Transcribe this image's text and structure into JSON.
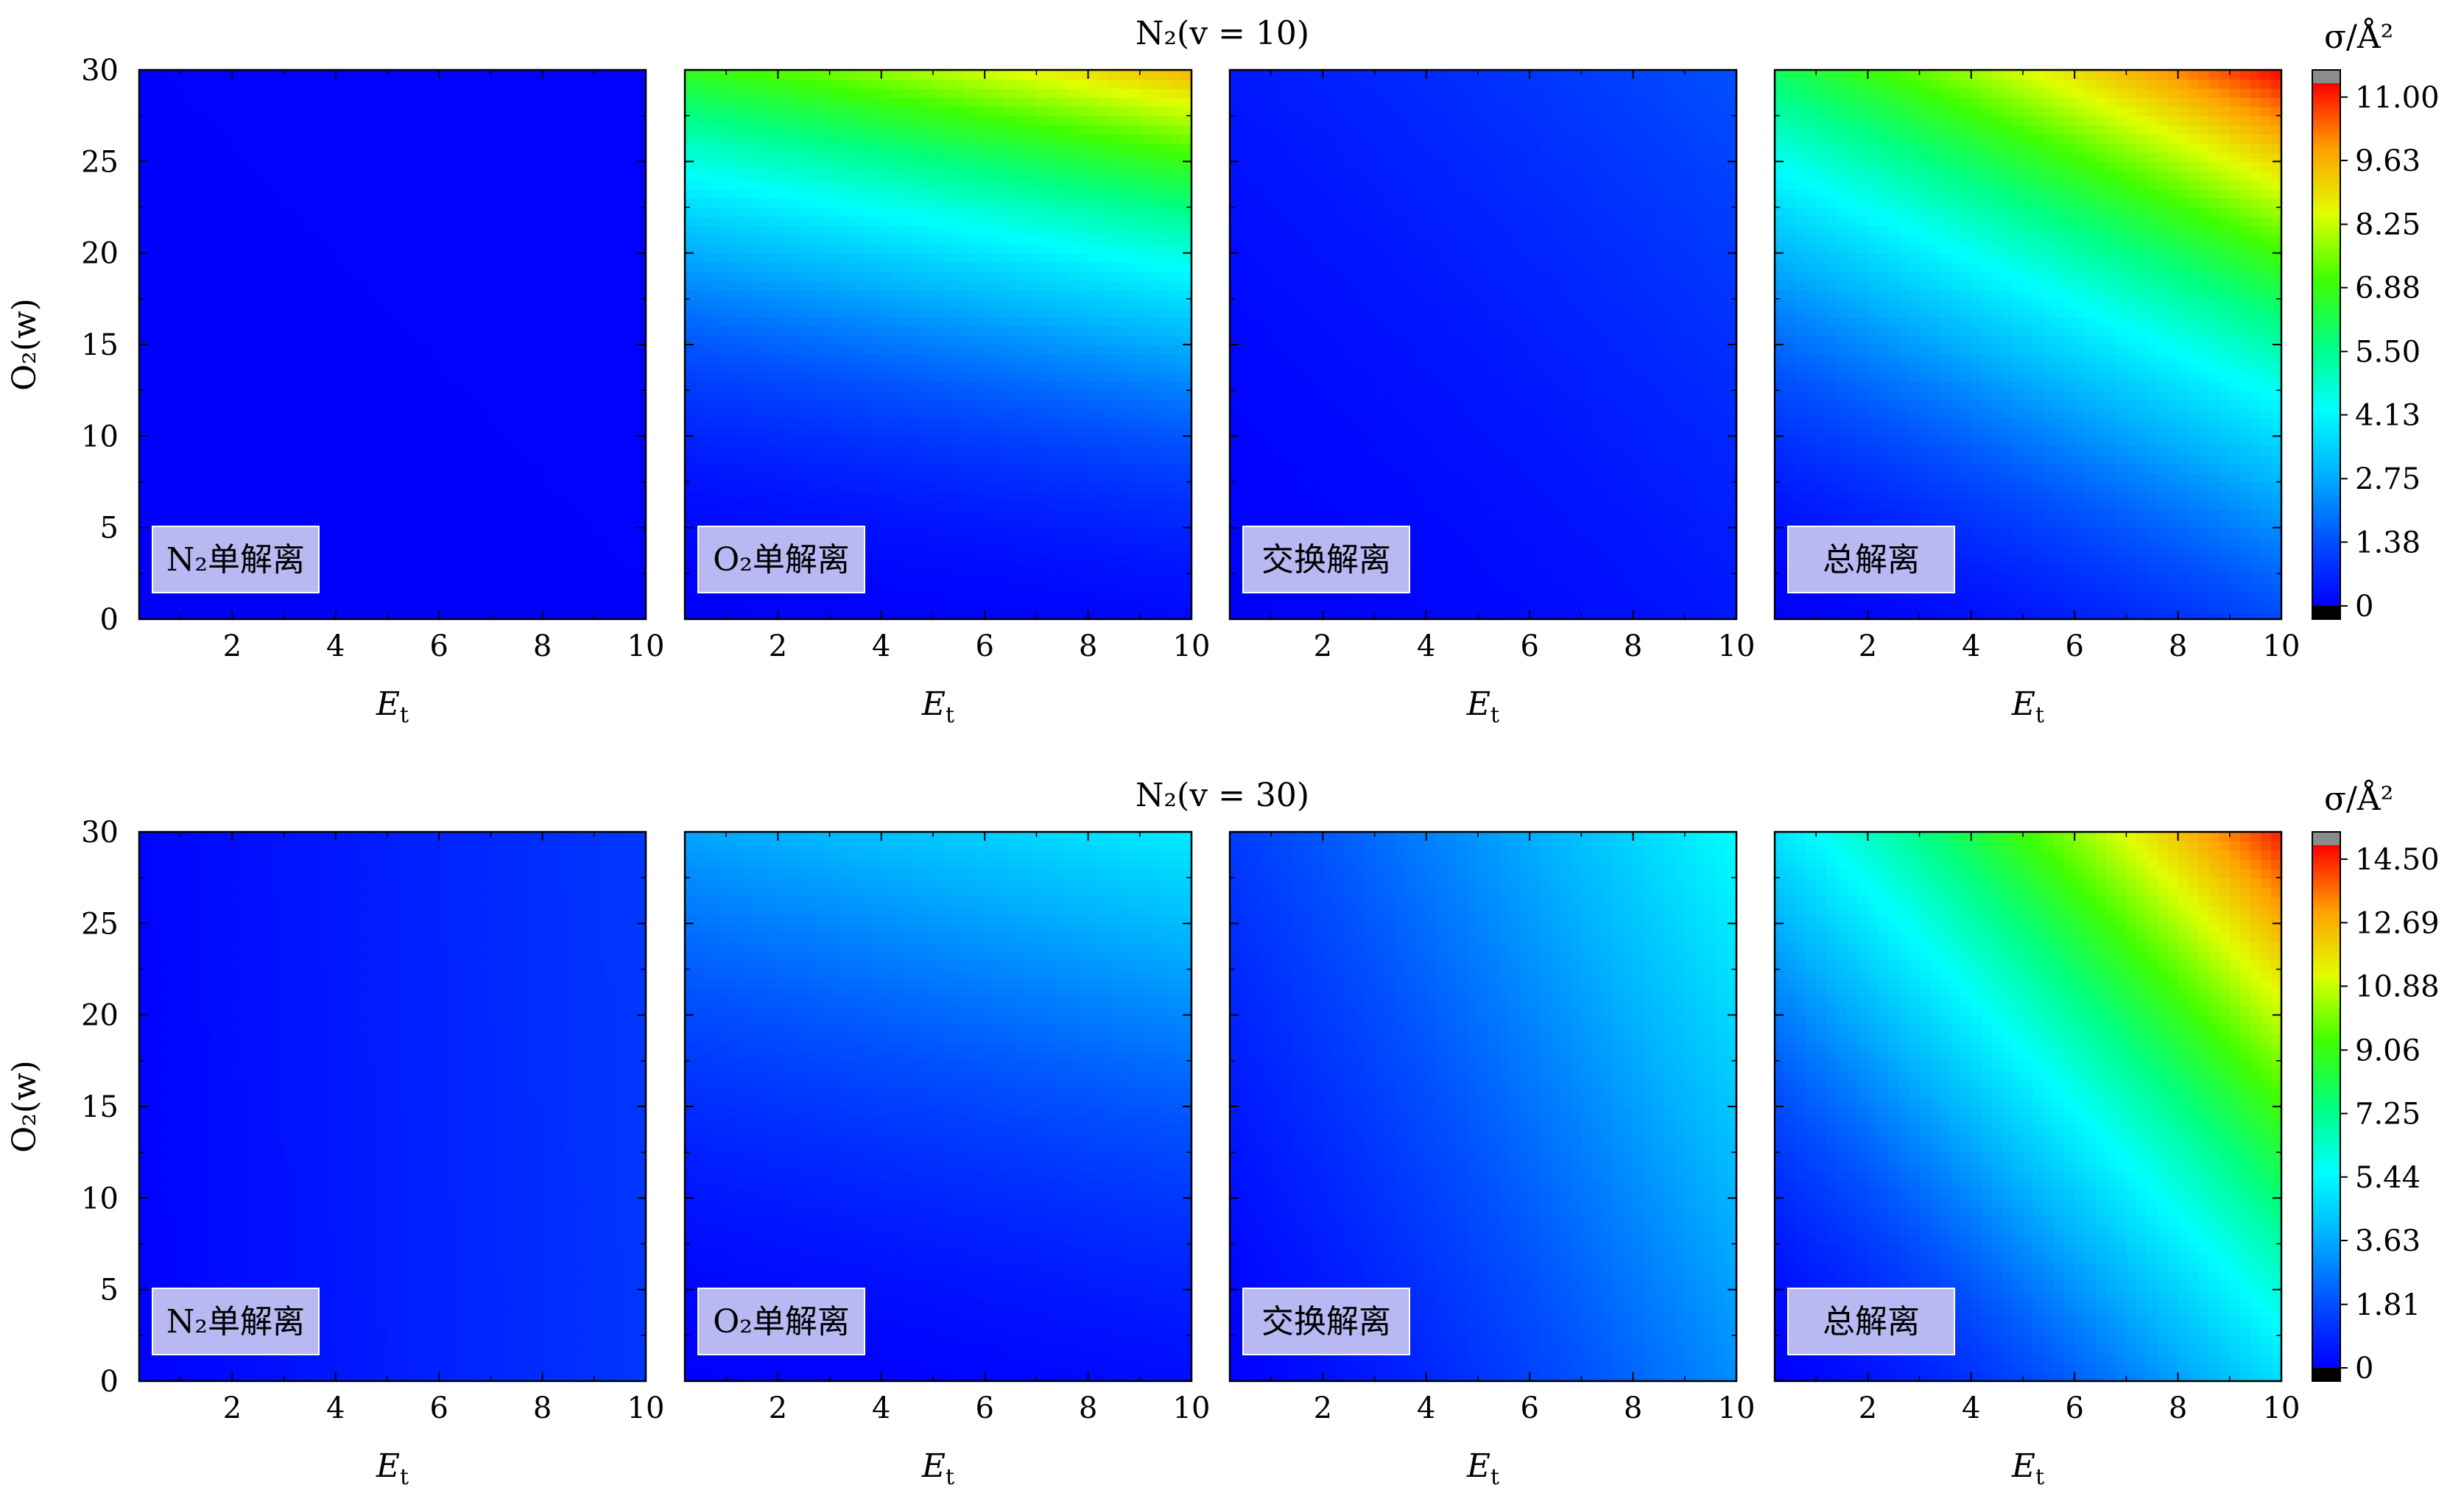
{
  "chart_data": [
    {
      "type": "heatmap",
      "title": "N₂(v = 10)",
      "xlabel": "E",
      "xlabel_sub": "t",
      "ylabel": "O₂(w)",
      "xlim": [
        0.2,
        10
      ],
      "ylim": [
        0,
        30
      ],
      "xticks": [
        2,
        4,
        6,
        8,
        10
      ],
      "yticks": [
        0,
        5,
        10,
        15,
        20,
        25,
        30
      ],
      "colorbar": {
        "label": "σ/Å²",
        "max": 11.3,
        "tick_values": [
          0,
          1.38,
          2.75,
          4.13,
          5.5,
          6.88,
          8.25,
          9.63,
          11.0
        ],
        "tick_labels": [
          "0",
          "1.38",
          "2.75",
          "4.13",
          "5.50",
          "6.88",
          "8.25",
          "9.63",
          "11.00"
        ],
        "over_color": "#8c8c8c",
        "under_color": "#000000"
      },
      "panels": [
        {
          "label": "N₂单解离",
          "v_scale": 0.02,
          "angle": 0.5,
          "power": 1.3
        },
        {
          "label": "O₂单解离",
          "v_scale": 9.6,
          "angle": 0.15,
          "power": 2.2
        },
        {
          "label": "交换解离",
          "v_scale": 1.4,
          "angle": 0.5,
          "power": 1.8
        },
        {
          "label": "总解离",
          "v_scale": 11.3,
          "angle": 0.3,
          "power": 1.8
        }
      ]
    },
    {
      "type": "heatmap",
      "title": "N₂(v = 30)",
      "xlabel": "E",
      "xlabel_sub": "t",
      "ylabel": "O₂(w)",
      "xlim": [
        0.2,
        10
      ],
      "ylim": [
        0,
        30
      ],
      "xticks": [
        2,
        4,
        6,
        8,
        10
      ],
      "yticks": [
        0,
        5,
        10,
        15,
        20,
        25,
        30
      ],
      "colorbar": {
        "label": "σ/Å²",
        "max": 14.9,
        "tick_values": [
          0,
          1.81,
          3.63,
          5.44,
          7.25,
          9.06,
          10.88,
          12.69,
          14.5
        ],
        "tick_labels": [
          "0",
          "1.81",
          "3.63",
          "5.44",
          "7.25",
          "9.06",
          "10.88",
          "12.69",
          "14.50"
        ],
        "over_color": "#8c8c8c",
        "under_color": "#000000"
      },
      "panels": [
        {
          "label": "N₂单解离",
          "v_scale": 1.3,
          "angle": 0.96,
          "power": 1.0
        },
        {
          "label": "O₂单解离",
          "v_scale": 5.2,
          "angle": 0.2,
          "power": 1.8
        },
        {
          "label": "交换解离",
          "v_scale": 5.6,
          "angle": 0.65,
          "power": 1.4
        },
        {
          "label": "总解离",
          "v_scale": 14.6,
          "angle": 0.5,
          "power": 1.6
        }
      ]
    }
  ]
}
